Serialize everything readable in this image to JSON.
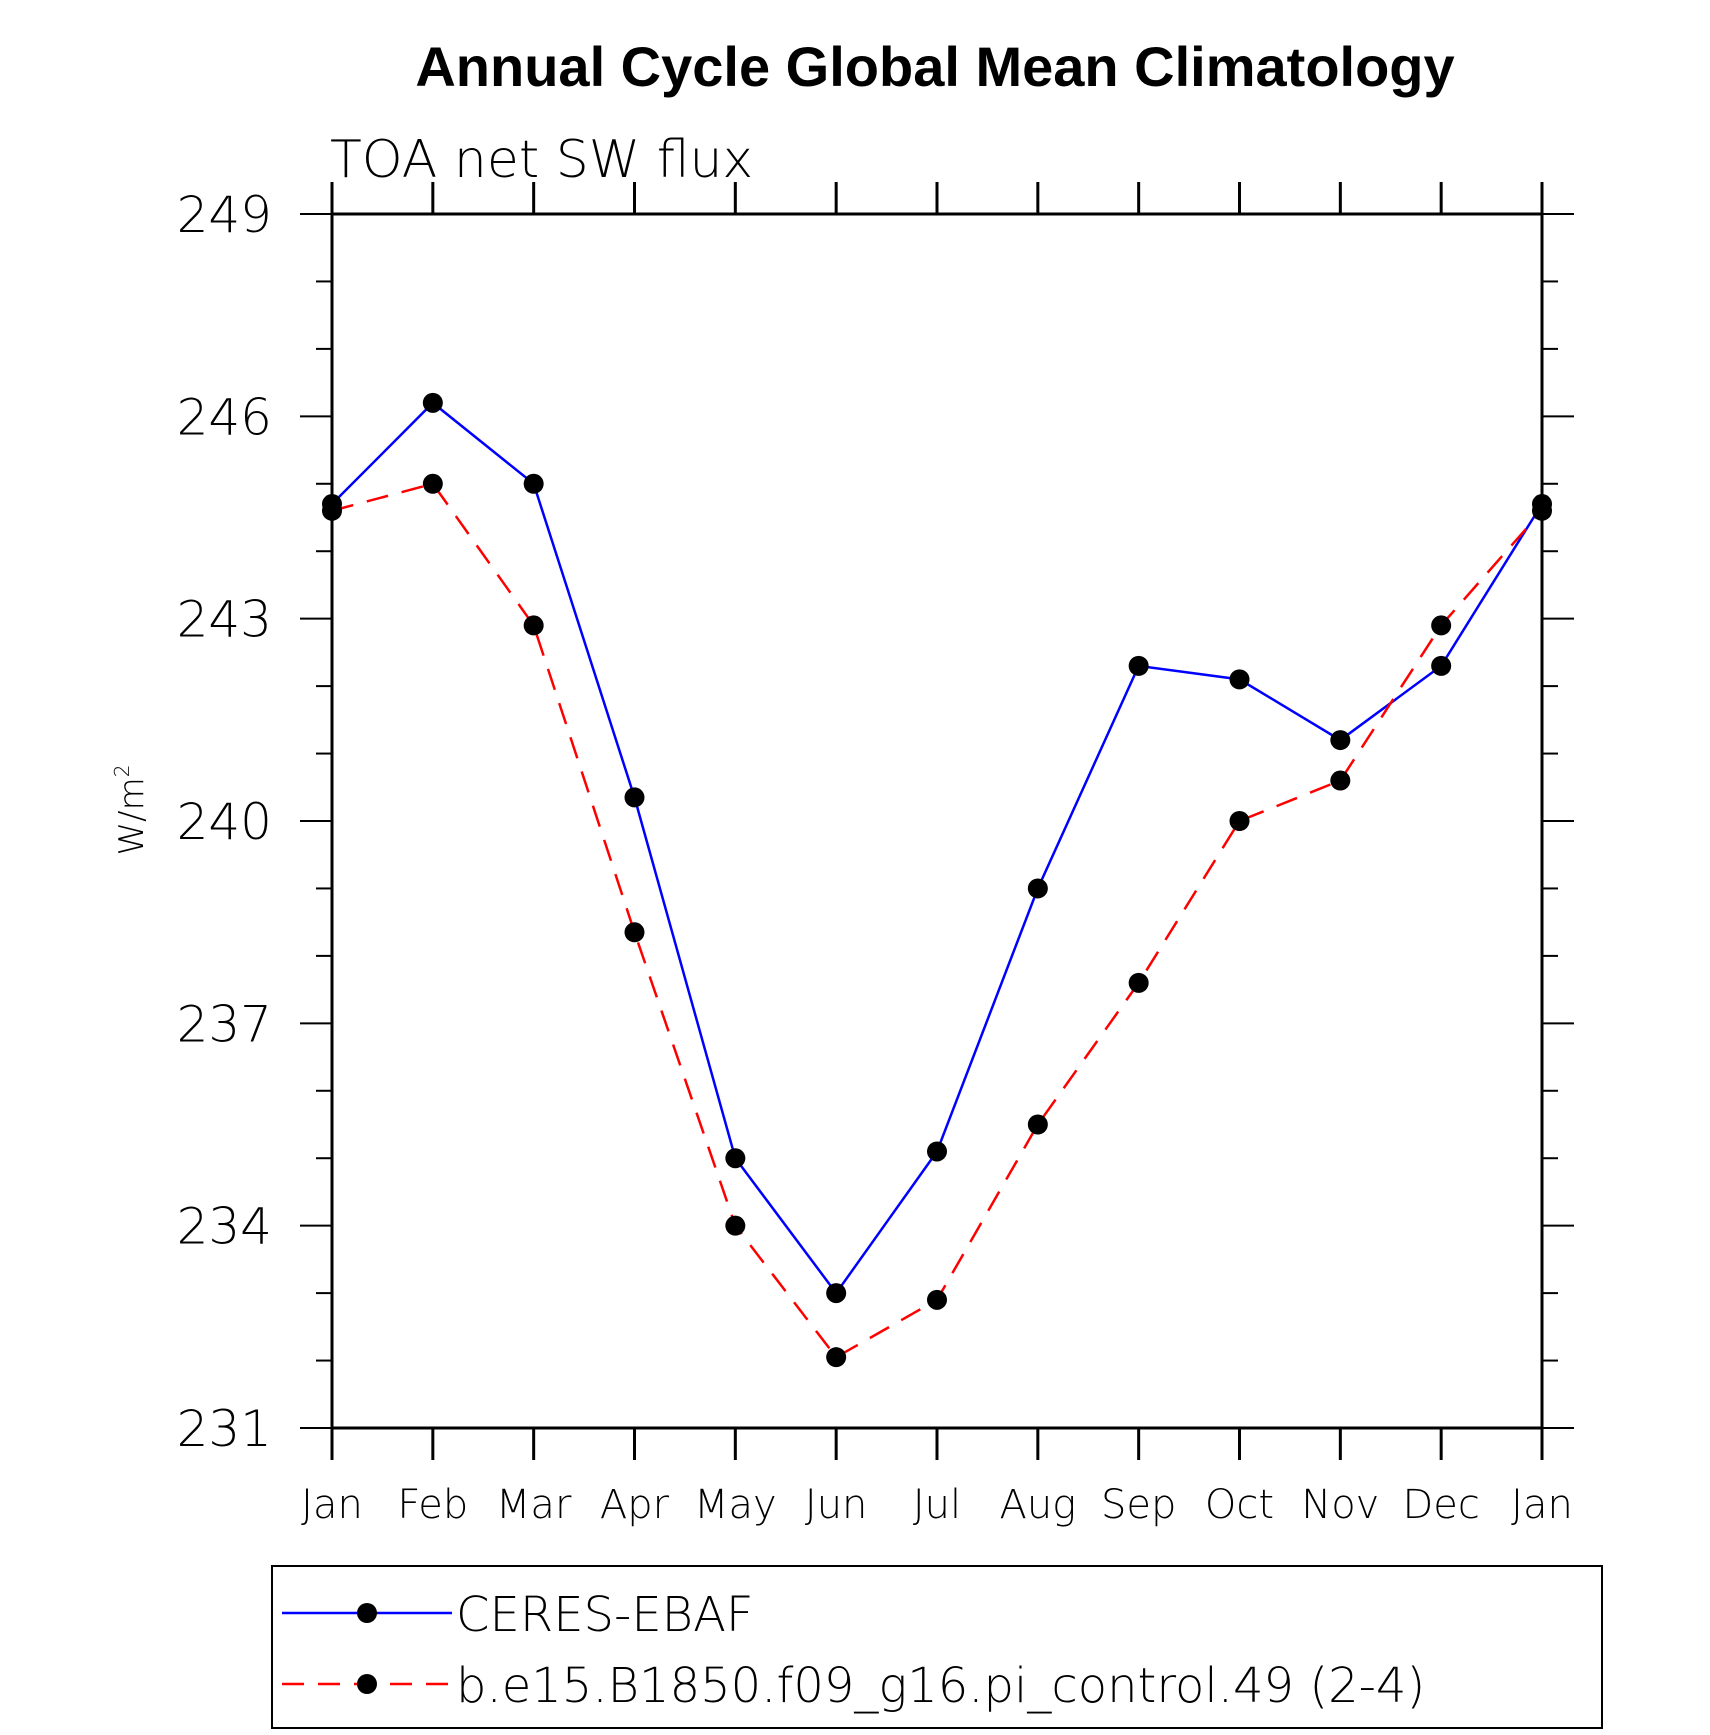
{
  "chart_data": {
    "type": "line",
    "title": "Annual Cycle Global Mean Climatology",
    "subtitle": "TOA net SW flux",
    "ylabel": "W/m",
    "ylabel_superscript": "2",
    "xlabel": "",
    "categories": [
      "Jan",
      "Feb",
      "Mar",
      "Apr",
      "May",
      "Jun",
      "Jul",
      "Aug",
      "Sep",
      "Oct",
      "Nov",
      "Dec",
      "Jan"
    ],
    "ylim": [
      231,
      249
    ],
    "yticks": [
      "249",
      "246",
      "243",
      "240",
      "237",
      "234",
      "231"
    ],
    "ytick_values": [
      249,
      246,
      243,
      240,
      237,
      234,
      231
    ],
    "legend_position": "bottom",
    "series": [
      {
        "name": "CERES-EBAF",
        "color": "#0000ff",
        "line_style": "solid",
        "values": [
          244.7,
          246.2,
          245.0,
          240.35,
          235.0,
          233.0,
          235.1,
          239.0,
          242.3,
          242.1,
          241.2,
          242.3,
          244.7
        ]
      },
      {
        "name": "b.e15.B1850.f09_g16.pi_control.49 (2-4)",
        "color": "#ff0000",
        "line_style": "dashed",
        "values": [
          244.6,
          245.0,
          242.9,
          238.35,
          234.0,
          232.05,
          232.9,
          235.5,
          237.6,
          240.0,
          240.6,
          242.9,
          244.6
        ]
      }
    ]
  }
}
